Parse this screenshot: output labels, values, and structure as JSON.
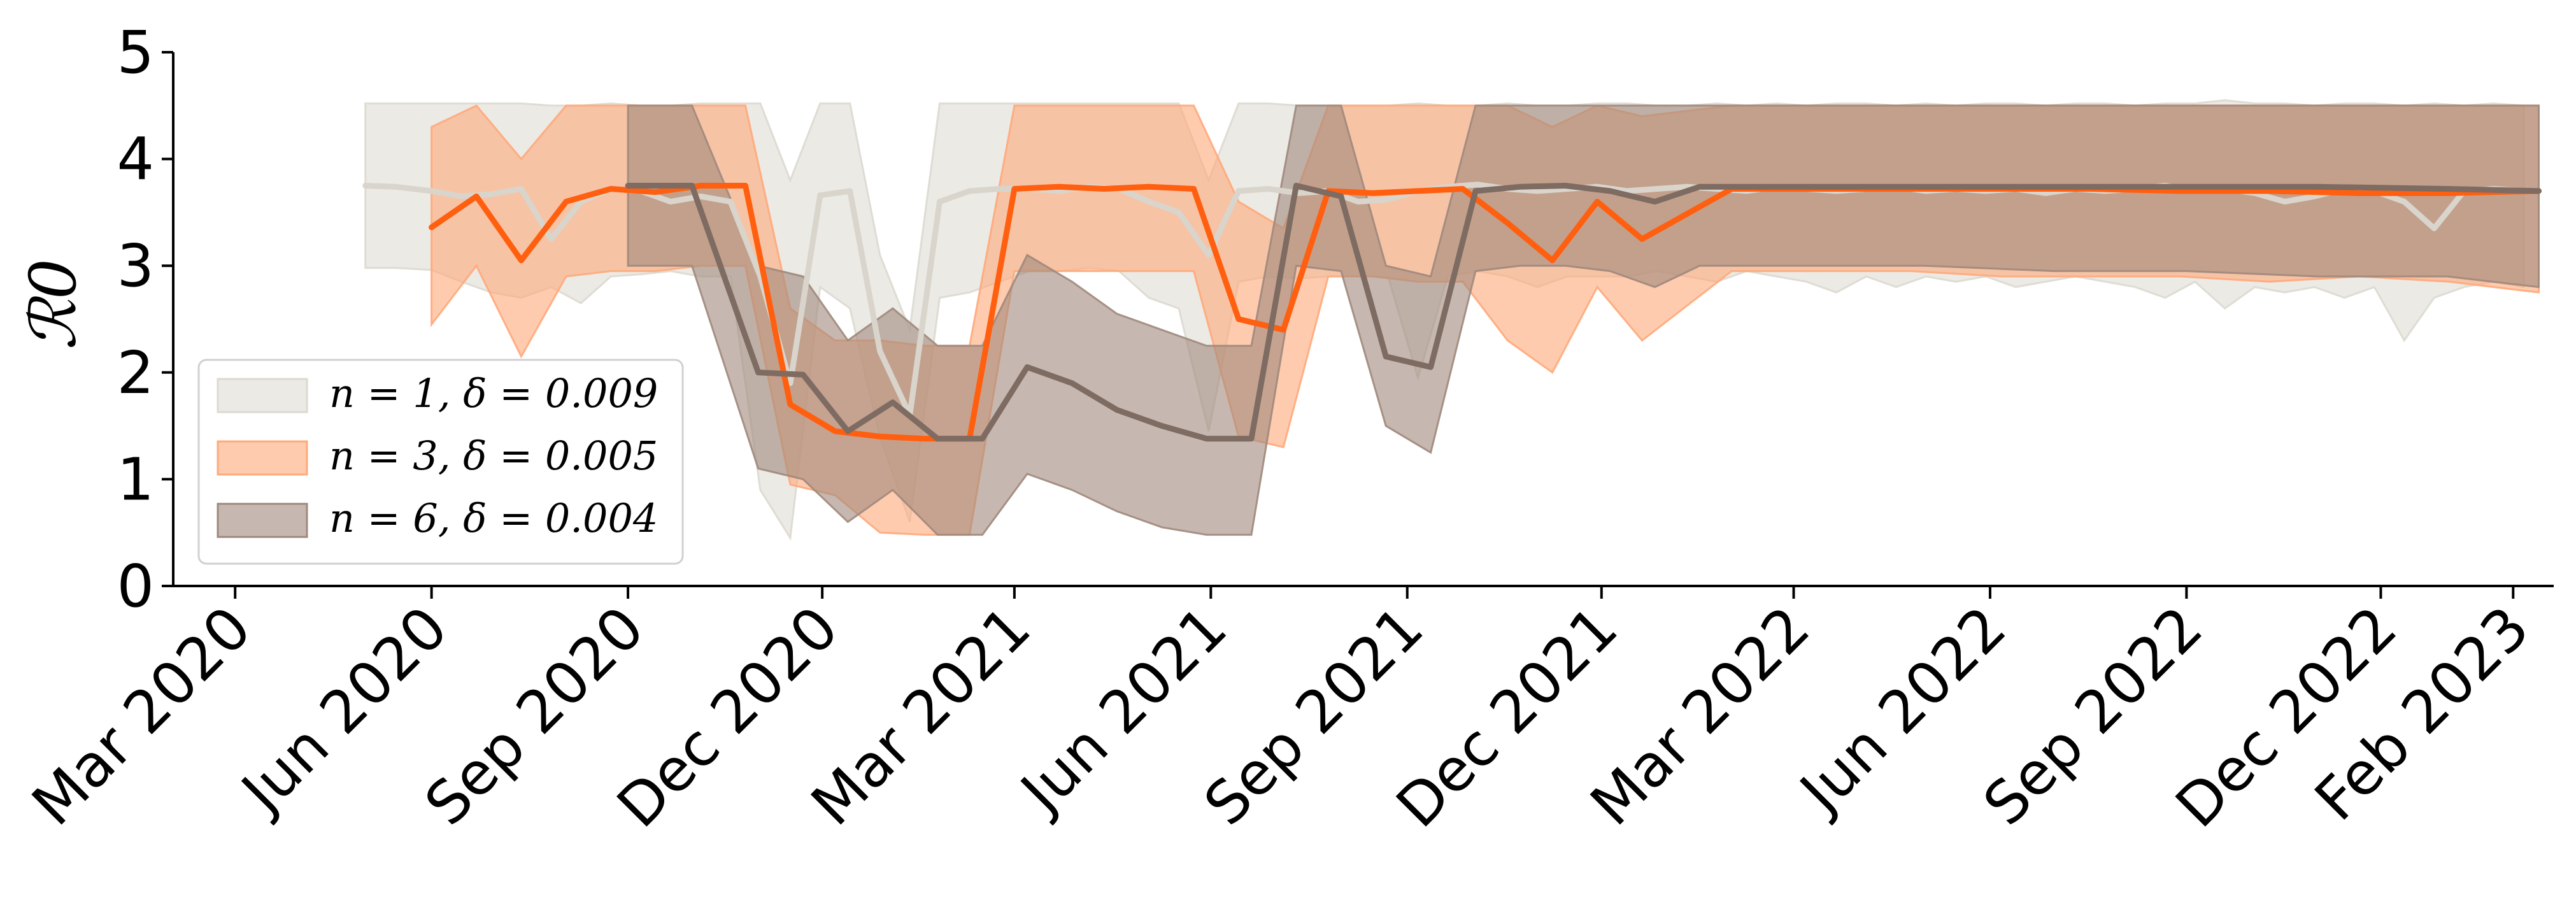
{
  "chart_data": {
    "type": "line",
    "ylabel": "ℛ0",
    "ylim": [
      0,
      5
    ],
    "yticks": [
      "0",
      "1",
      "2",
      "3",
      "4",
      "5"
    ],
    "xlim": [
      "2020-02-01",
      "2023-02-20"
    ],
    "xticks": [
      {
        "date": "2020-03-01",
        "label": "Mar 2020"
      },
      {
        "date": "2020-06-01",
        "label": "Jun 2020"
      },
      {
        "date": "2020-09-01",
        "label": "Sep 2020"
      },
      {
        "date": "2020-12-01",
        "label": "Dec 2020"
      },
      {
        "date": "2021-03-01",
        "label": "Mar 2021"
      },
      {
        "date": "2021-06-01",
        "label": "Jun 2021"
      },
      {
        "date": "2021-09-01",
        "label": "Sep 2021"
      },
      {
        "date": "2021-12-01",
        "label": "Dec 2021"
      },
      {
        "date": "2022-03-01",
        "label": "Mar 2022"
      },
      {
        "date": "2022-06-01",
        "label": "Jun 2022"
      },
      {
        "date": "2022-09-01",
        "label": "Sep 2022"
      },
      {
        "date": "2022-12-01",
        "label": "Dec 2022"
      },
      {
        "date": "2023-02-01",
        "label": "Feb 2023"
      }
    ],
    "legend_position": "lower-left",
    "series": [
      {
        "name": "n = 1, δ = 0.009",
        "line_color": "#d9d5cc",
        "fill_color": "#ddd9d0",
        "x": [
          "2020-05-01",
          "2020-05-15",
          "2020-06-01",
          "2020-06-15",
          "2020-06-29",
          "2020-07-13",
          "2020-07-27",
          "2020-08-10",
          "2020-08-24",
          "2020-09-07",
          "2020-09-21",
          "2020-10-05",
          "2020-10-19",
          "2020-11-02",
          "2020-11-16",
          "2020-11-30",
          "2020-12-14",
          "2020-12-28",
          "2021-01-11",
          "2021-01-25",
          "2021-02-08",
          "2021-02-22",
          "2021-03-08",
          "2021-03-22",
          "2021-04-05",
          "2021-04-19",
          "2021-05-03",
          "2021-05-17",
          "2021-05-31",
          "2021-06-14",
          "2021-06-28",
          "2021-07-12",
          "2021-07-26",
          "2021-08-09",
          "2021-08-23",
          "2021-09-06",
          "2021-09-20",
          "2021-10-04",
          "2021-10-18",
          "2021-11-01",
          "2021-11-15",
          "2021-11-29",
          "2021-12-13",
          "2021-12-27",
          "2022-01-10",
          "2022-01-24",
          "2022-02-07",
          "2022-02-21",
          "2022-03-07",
          "2022-03-21",
          "2022-04-04",
          "2022-04-18",
          "2022-05-02",
          "2022-05-16",
          "2022-05-30",
          "2022-06-13",
          "2022-06-27",
          "2022-07-11",
          "2022-07-25",
          "2022-08-08",
          "2022-08-22",
          "2022-09-05",
          "2022-09-19",
          "2022-10-03",
          "2022-10-17",
          "2022-10-31",
          "2022-11-14",
          "2022-11-28",
          "2022-12-12",
          "2022-12-26",
          "2023-01-09",
          "2023-01-23",
          "2023-02-06"
        ],
        "y": [
          3.75,
          3.74,
          3.7,
          3.65,
          3.67,
          3.72,
          3.25,
          3.6,
          3.72,
          3.7,
          3.6,
          3.65,
          3.6,
          2.9,
          1.9,
          3.66,
          3.7,
          2.2,
          1.6,
          3.6,
          3.7,
          3.72,
          3.72,
          3.7,
          3.74,
          3.72,
          3.6,
          3.5,
          3.1,
          3.7,
          3.72,
          3.68,
          3.7,
          3.6,
          3.62,
          3.7,
          3.74,
          3.76,
          3.72,
          3.7,
          3.72,
          3.74,
          3.7,
          3.72,
          3.74,
          3.72,
          3.7,
          3.74,
          3.72,
          3.7,
          3.72,
          3.74,
          3.7,
          3.72,
          3.7,
          3.72,
          3.68,
          3.72,
          3.7,
          3.72,
          3.75,
          3.7,
          3.72,
          3.68,
          3.6,
          3.65,
          3.72,
          3.7,
          3.6,
          3.35,
          3.7,
          3.72,
          3.7
        ],
        "lower": [
          2.98,
          2.98,
          2.96,
          2.85,
          2.75,
          2.7,
          2.8,
          2.65,
          2.9,
          2.92,
          2.95,
          2.9,
          2.9,
          0.9,
          0.45,
          2.8,
          2.6,
          1.4,
          0.6,
          2.7,
          2.75,
          2.85,
          2.95,
          2.95,
          2.98,
          2.95,
          2.7,
          2.6,
          1.45,
          2.85,
          2.9,
          2.88,
          2.9,
          2.9,
          2.9,
          1.95,
          2.9,
          2.95,
          2.9,
          2.8,
          2.9,
          2.9,
          2.9,
          2.95,
          2.9,
          2.85,
          2.95,
          2.9,
          2.85,
          2.75,
          2.9,
          2.8,
          2.9,
          2.85,
          2.9,
          2.8,
          2.85,
          2.9,
          2.85,
          2.8,
          2.7,
          2.85,
          2.6,
          2.8,
          2.75,
          2.8,
          2.7,
          2.8,
          2.3,
          2.7,
          2.8,
          2.85,
          2.8
        ],
        "upper": [
          4.52,
          4.52,
          4.52,
          4.52,
          4.52,
          4.52,
          4.5,
          4.5,
          4.52,
          4.5,
          4.5,
          4.52,
          4.52,
          4.52,
          3.8,
          4.52,
          4.52,
          3.1,
          2.4,
          4.52,
          4.52,
          4.52,
          4.52,
          4.52,
          4.52,
          4.52,
          4.52,
          4.52,
          3.8,
          4.52,
          4.52,
          4.5,
          4.5,
          4.5,
          4.5,
          4.52,
          4.5,
          4.5,
          4.52,
          4.5,
          4.5,
          4.52,
          4.52,
          4.5,
          4.5,
          4.52,
          4.5,
          4.52,
          4.5,
          4.52,
          4.52,
          4.5,
          4.52,
          4.5,
          4.52,
          4.52,
          4.5,
          4.52,
          4.52,
          4.5,
          4.52,
          4.52,
          4.55,
          4.52,
          4.52,
          4.5,
          4.52,
          4.52,
          4.5,
          4.52,
          4.5,
          4.52,
          4.5
        ]
      },
      {
        "name": "n = 3, δ = 0.005",
        "line_color": "#ff5f0f",
        "fill_color": "#ffa97a",
        "x": [
          "2020-06-01",
          "2020-06-22",
          "2020-07-13",
          "2020-08-03",
          "2020-08-24",
          "2020-09-14",
          "2020-10-05",
          "2020-10-26",
          "2020-11-16",
          "2020-12-07",
          "2020-12-28",
          "2021-01-18",
          "2021-02-08",
          "2021-03-01",
          "2021-03-22",
          "2021-04-12",
          "2021-05-03",
          "2021-05-24",
          "2021-06-14",
          "2021-07-05",
          "2021-07-26",
          "2021-08-16",
          "2021-09-06",
          "2021-09-27",
          "2021-10-18",
          "2021-11-08",
          "2021-11-29",
          "2021-12-20",
          "2022-01-31",
          "2022-03-14",
          "2022-04-25",
          "2022-06-06",
          "2022-07-18",
          "2022-08-29",
          "2022-10-10",
          "2022-11-21",
          "2023-01-02",
          "2023-02-13"
        ],
        "y": [
          3.36,
          3.65,
          3.05,
          3.6,
          3.72,
          3.69,
          3.75,
          3.75,
          1.7,
          1.45,
          1.4,
          1.38,
          1.38,
          3.72,
          3.74,
          3.72,
          3.74,
          3.72,
          2.5,
          2.4,
          3.7,
          3.68,
          3.7,
          3.72,
          3.4,
          3.05,
          3.6,
          3.25,
          3.72,
          3.72,
          3.72,
          3.72,
          3.72,
          3.7,
          3.7,
          3.68,
          3.68,
          3.7
        ],
        "lower": [
          2.45,
          3.0,
          2.15,
          2.9,
          2.95,
          2.95,
          3.0,
          3.0,
          0.95,
          0.85,
          0.5,
          0.48,
          0.48,
          2.95,
          2.95,
          2.95,
          2.95,
          2.95,
          1.4,
          1.3,
          2.9,
          2.9,
          2.85,
          2.85,
          2.3,
          2.0,
          2.8,
          2.3,
          2.95,
          2.95,
          2.95,
          2.9,
          2.9,
          2.9,
          2.85,
          2.9,
          2.85,
          2.75
        ],
        "upper": [
          4.3,
          4.5,
          4.0,
          4.5,
          4.5,
          4.5,
          4.5,
          4.5,
          2.6,
          2.3,
          2.3,
          2.25,
          2.25,
          4.5,
          4.5,
          4.5,
          4.5,
          4.5,
          3.6,
          3.35,
          4.5,
          4.5,
          4.5,
          4.5,
          4.5,
          4.3,
          4.5,
          4.4,
          4.5,
          4.5,
          4.5,
          4.5,
          4.5,
          4.5,
          4.5,
          4.5,
          4.5,
          4.5
        ]
      },
      {
        "name": "n = 6, δ = 0.004",
        "line_color": "#7e6b61",
        "fill_color": "#a0887c",
        "x": [
          "2020-09-01",
          "2020-10-01",
          "2020-11-01",
          "2020-11-22",
          "2020-12-13",
          "2021-01-03",
          "2021-01-24",
          "2021-02-14",
          "2021-03-07",
          "2021-03-28",
          "2021-04-18",
          "2021-05-09",
          "2021-05-30",
          "2021-06-20",
          "2021-07-11",
          "2021-08-01",
          "2021-08-22",
          "2021-09-12",
          "2021-10-03",
          "2021-10-24",
          "2021-11-14",
          "2021-12-05",
          "2021-12-26",
          "2022-01-16",
          "2022-03-01",
          "2022-05-01",
          "2022-07-01",
          "2022-09-01",
          "2022-11-01",
          "2023-01-01",
          "2023-02-13"
        ],
        "y": [
          3.75,
          3.75,
          2.0,
          1.98,
          1.45,
          1.72,
          1.38,
          1.38,
          2.05,
          1.9,
          1.65,
          1.5,
          1.38,
          1.38,
          3.75,
          3.65,
          2.15,
          2.05,
          3.7,
          3.74,
          3.75,
          3.7,
          3.6,
          3.74,
          3.74,
          3.74,
          3.74,
          3.74,
          3.74,
          3.72,
          3.7
        ],
        "lower": [
          3.0,
          3.0,
          1.1,
          1.0,
          0.6,
          0.9,
          0.48,
          0.48,
          1.05,
          0.9,
          0.7,
          0.55,
          0.48,
          0.48,
          3.0,
          2.95,
          1.5,
          1.25,
          2.95,
          3.0,
          3.0,
          2.95,
          2.8,
          3.0,
          3.0,
          3.0,
          2.95,
          2.95,
          2.9,
          2.9,
          2.8
        ],
        "upper": [
          4.5,
          4.5,
          3.0,
          2.9,
          2.3,
          2.6,
          2.25,
          2.25,
          3.1,
          2.85,
          2.55,
          2.4,
          2.25,
          2.25,
          4.5,
          4.5,
          3.0,
          2.9,
          4.5,
          4.5,
          4.5,
          4.5,
          4.5,
          4.5,
          4.5,
          4.5,
          4.5,
          4.5,
          4.5,
          4.5,
          4.5
        ]
      }
    ]
  }
}
